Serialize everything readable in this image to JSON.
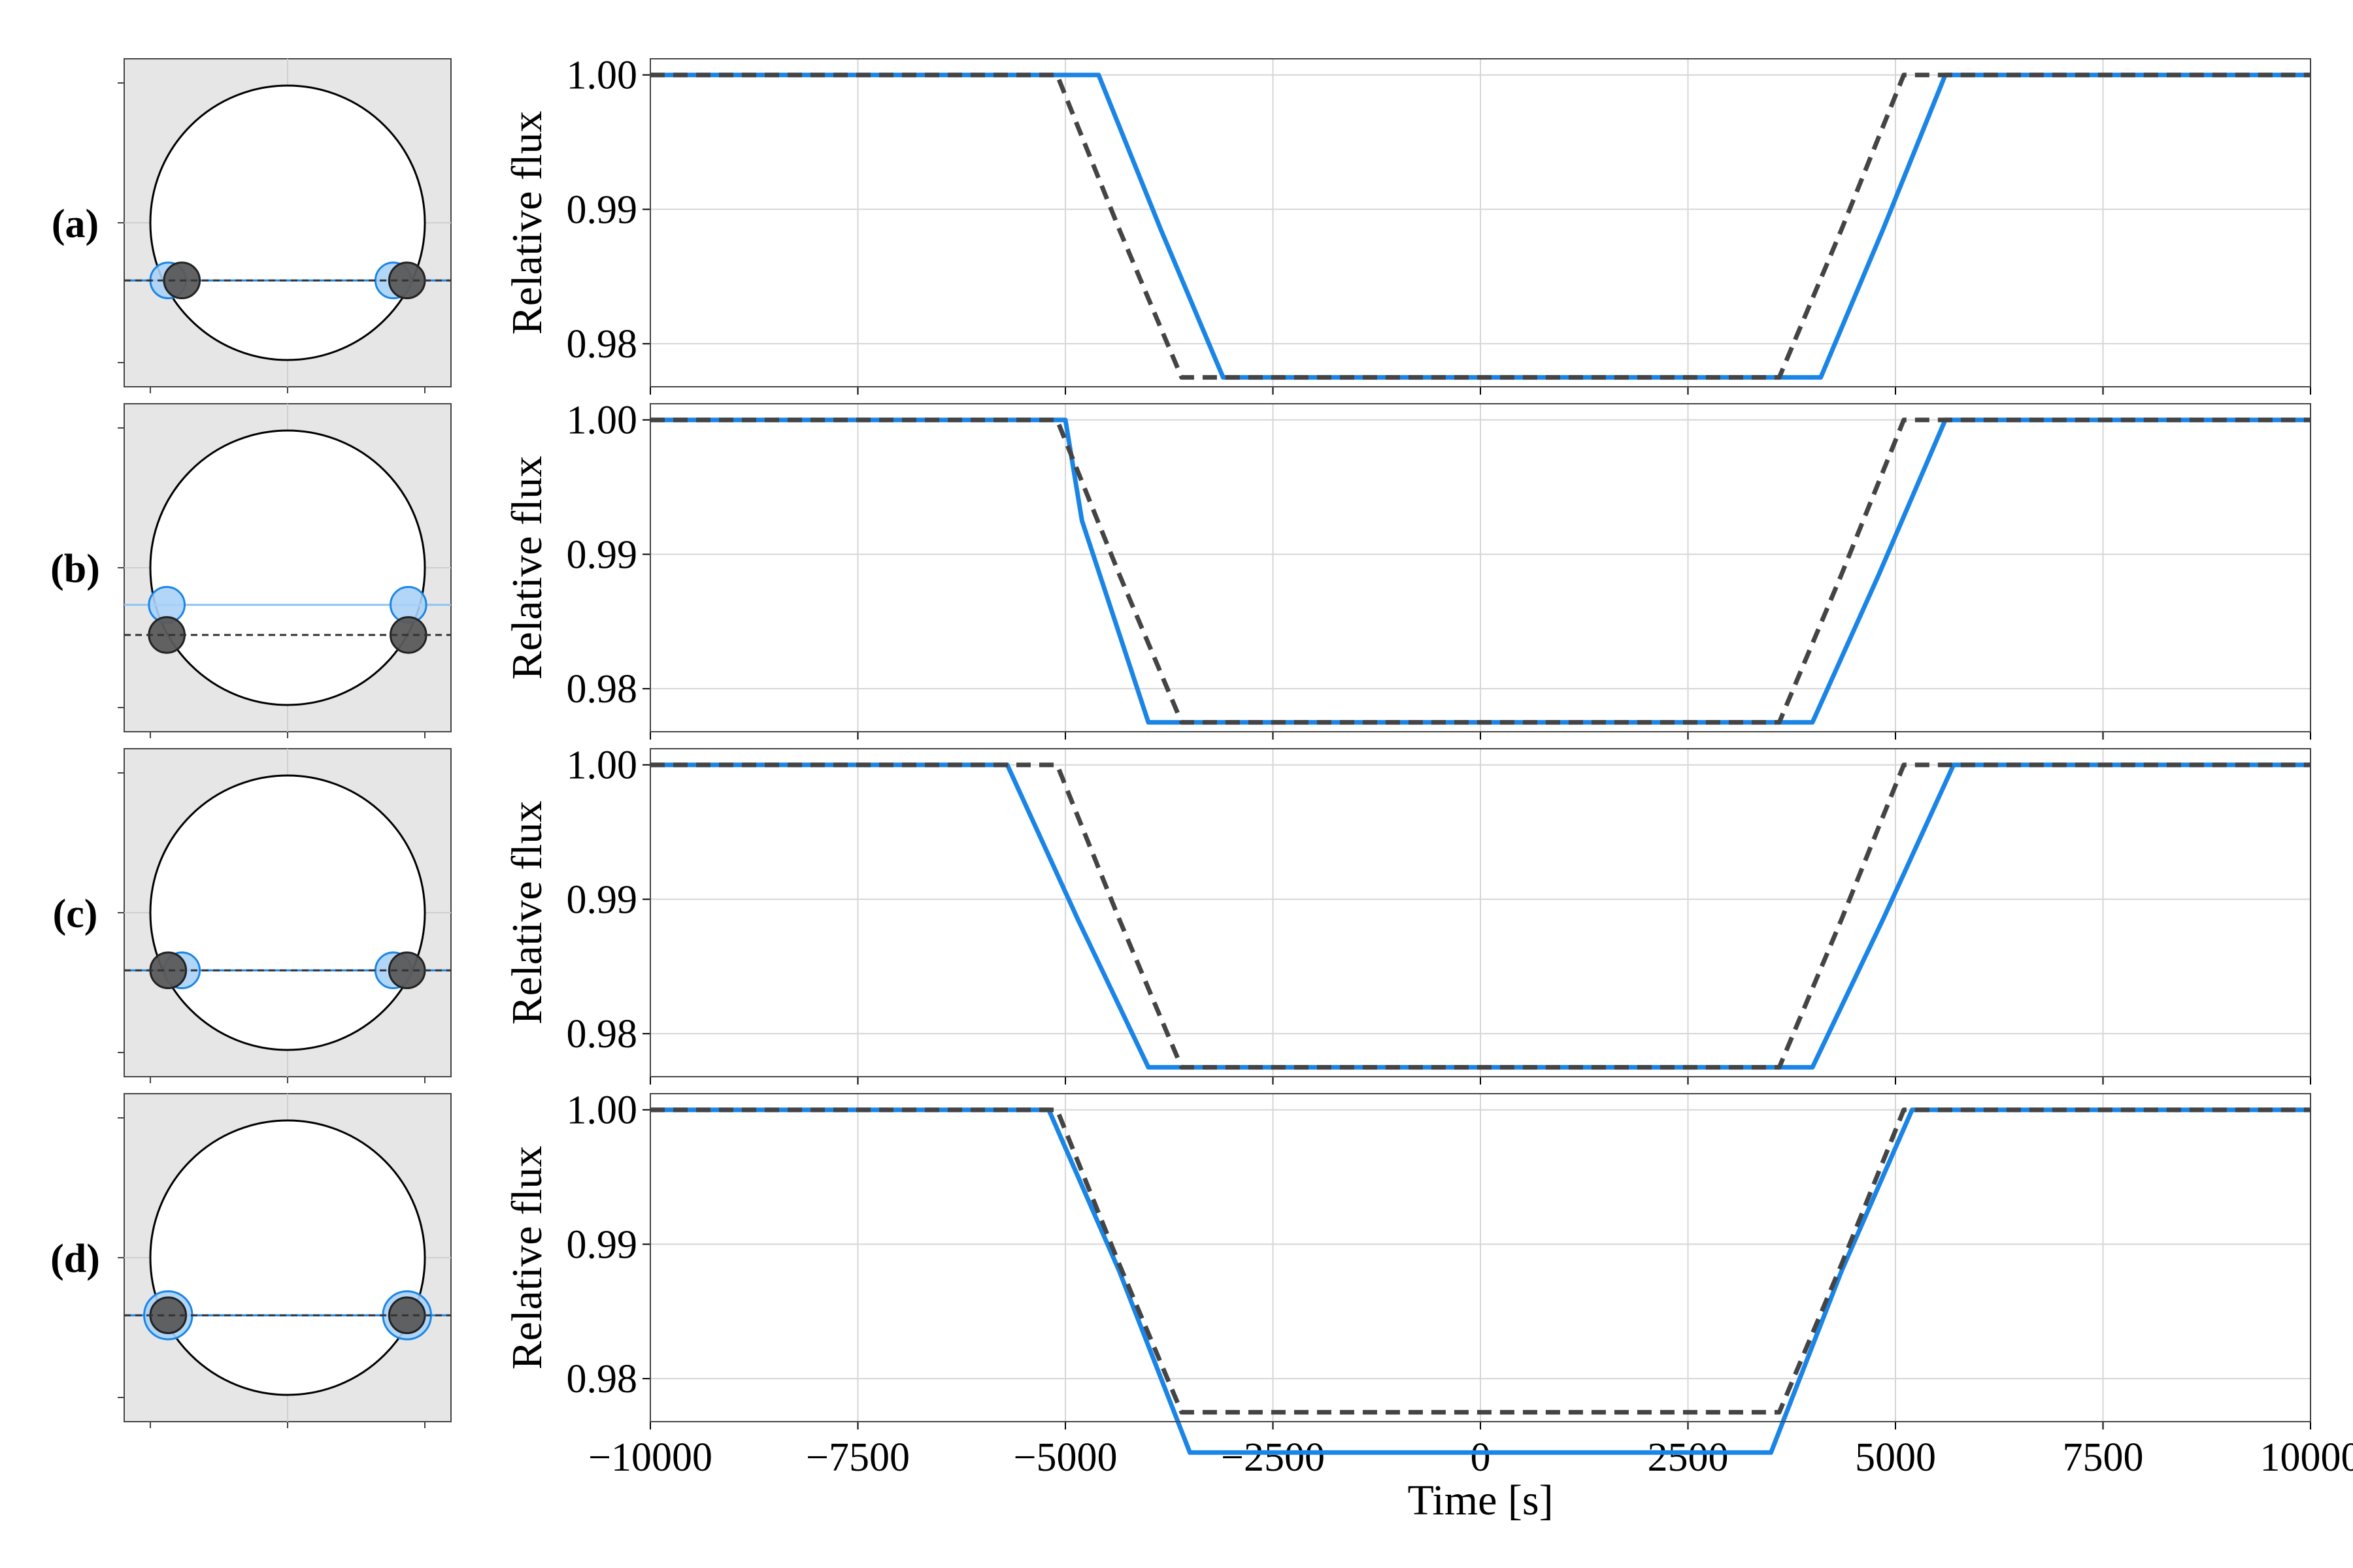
{
  "chart_data": {
    "type": "line",
    "xlabel": "Time [s]",
    "ylabel": "Relative flux",
    "xlim": [
      -10000,
      10000
    ],
    "ylim": [
      0.9768,
      1.0012
    ],
    "xticks": [
      -10000,
      -7500,
      -5000,
      -2500,
      0,
      2500,
      5000,
      7500,
      10000
    ],
    "xtick_labels": [
      "−10000",
      "−7500",
      "−5000",
      "−2500",
      "0",
      "2500",
      "5000",
      "7500",
      "10000"
    ],
    "yticks": [
      0.98,
      0.99,
      1.0
    ],
    "ytick_labels": [
      "0.98",
      "0.99",
      "1.00"
    ],
    "grid": true,
    "colors": {
      "solid": "#1a85e6",
      "dashed": "#444444",
      "diagram_bg": "#e6e6e6",
      "planet_light": "#a9d2f7",
      "planet_dark": "#5a5a5a"
    },
    "panels": [
      {
        "label": "(a)",
        "diagram": {
          "solid_chord_y": -0.42,
          "dashed_chord_y": -0.42,
          "solid_planet_x": [
            -0.87,
            0.77
          ],
          "dashed_planet_x": [
            -0.77,
            0.87
          ],
          "solid_radius": 0.13,
          "dashed_radius": 0.13
        },
        "series": [
          {
            "style": "solid",
            "x": [
              -10000,
              -5200,
              -4600,
              -3850,
              -3100,
              4100,
              4850,
              5600,
              10000
            ],
            "y": [
              1.0,
              1.0,
              1.0,
              0.9885,
              0.9775,
              0.9775,
              0.9885,
              1.0,
              1.0
            ]
          },
          {
            "style": "dashed",
            "x": [
              -10000,
              -5200,
              -5100,
              -4350,
              -3600,
              3600,
              4350,
              5100,
              10000
            ],
            "y": [
              1.0,
              1.0,
              1.0,
              0.9885,
              0.9775,
              0.9775,
              0.9885,
              1.0,
              1.0
            ]
          }
        ]
      },
      {
        "label": "(b)",
        "diagram": {
          "solid_chord_y": -0.27,
          "dashed_chord_y": -0.49,
          "solid_planet_x": [
            -0.88,
            0.88
          ],
          "dashed_planet_x": [
            -0.88,
            0.88
          ],
          "solid_radius": 0.13,
          "dashed_radius": 0.13
        },
        "series": [
          {
            "style": "solid",
            "x": [
              -10000,
              -5600,
              -5000,
              -4800,
              -4800,
              -4000,
              4000,
              4800,
              5600,
              10000
            ],
            "y": [
              1.0,
              1.0,
              1.0,
              0.9925,
              0.9925,
              0.9775,
              0.9775,
              0.9885,
              1.0,
              1.0
            ]
          },
          {
            "style": "dashed",
            "x": [
              -10000,
              -5200,
              -5100,
              -4350,
              -3600,
              3600,
              4350,
              5100,
              10000
            ],
            "y": [
              1.0,
              1.0,
              1.0,
              0.9885,
              0.9775,
              0.9775,
              0.9885,
              1.0,
              1.0
            ]
          }
        ]
      },
      {
        "label": "(c)",
        "diagram": {
          "solid_chord_y": -0.42,
          "dashed_chord_y": -0.42,
          "solid_planet_x": [
            -0.77,
            0.77
          ],
          "dashed_planet_x": [
            -0.87,
            0.87
          ],
          "solid_radius": 0.13,
          "dashed_radius": 0.13
        },
        "series": [
          {
            "style": "solid",
            "x": [
              -10000,
              -5700,
              -5700,
              -4850,
              -4000,
              4000,
              4850,
              5700,
              10000
            ],
            "y": [
              1.0,
              1.0,
              1.0,
              0.9885,
              0.9775,
              0.9775,
              0.9885,
              1.0,
              1.0
            ]
          },
          {
            "style": "dashed",
            "x": [
              -10000,
              -5200,
              -5100,
              -4350,
              -3600,
              3600,
              4350,
              5100,
              10000
            ],
            "y": [
              1.0,
              1.0,
              1.0,
              0.9885,
              0.9775,
              0.9775,
              0.9885,
              1.0,
              1.0
            ]
          }
        ]
      },
      {
        "label": "(d)",
        "diagram": {
          "solid_chord_y": -0.42,
          "dashed_chord_y": -0.42,
          "solid_planet_x": [
            -0.87,
            0.87
          ],
          "dashed_planet_x": [
            -0.87,
            0.87
          ],
          "solid_radius": 0.175,
          "dashed_radius": 0.13
        },
        "series": [
          {
            "style": "solid",
            "x": [
              -10000,
              -5200,
              -5200,
              -4350,
              -3500,
              3500,
              4350,
              5200,
              10000
            ],
            "y": [
              1.0,
              1.0,
              1.0,
              0.988,
              0.9745,
              0.9745,
              0.988,
              1.0,
              1.0
            ]
          },
          {
            "style": "dashed",
            "x": [
              -10000,
              -5200,
              -5100,
              -4350,
              -3600,
              3600,
              4350,
              5100,
              10000
            ],
            "y": [
              1.0,
              1.0,
              1.0,
              0.9885,
              0.9775,
              0.9775,
              0.9885,
              1.0,
              1.0
            ]
          }
        ]
      }
    ]
  }
}
